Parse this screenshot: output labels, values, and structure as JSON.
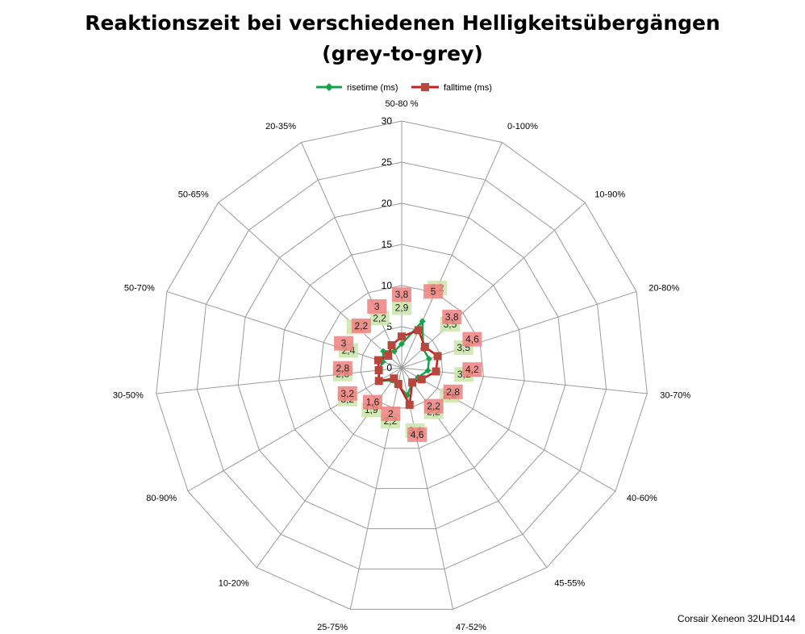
{
  "title": {
    "line1": "Reaktionszeit bei verschiedenen Helligkeitsübergängen",
    "line2": "(grey-to-grey)"
  },
  "footer": "Corsair Xeneon 32UHD144",
  "colors": {
    "rise": "#16a34a",
    "rise_label_bg": "#c9e6a8",
    "fall": "#c81e1e",
    "fall_marker": "#b5473f",
    "fall_label_bg": "#f08080",
    "grid": "#9a9a9a"
  },
  "chart_data": {
    "type": "radar",
    "categories": [
      "50-80 %",
      "0-100%",
      "10-90%",
      "20-80%",
      "30-70%",
      "40-60%",
      "45-55%",
      "47-52%",
      "25-75%",
      "10-20%",
      "80-90%",
      "30-50%",
      "50-70%",
      "50-65%",
      "20-35%"
    ],
    "tick_labels": [
      "0",
      "5",
      "10",
      "15",
      "20",
      "25",
      "30"
    ],
    "rlim": [
      0,
      30
    ],
    "grid": true,
    "legend": "top-center",
    "series": [
      {
        "name": "risetime (ms)",
        "values": [
          2.9,
          6.2,
          3.5,
          3.5,
          3.2,
          2.3,
          2.2,
          3.4,
          2.2,
          1.9,
          3.2,
          2.8,
          2.4,
          3.0,
          2.2
        ]
      },
      {
        "name": "falltime (ms)",
        "values": [
          3.8,
          5.0,
          3.8,
          4.6,
          4.2,
          2.8,
          2.2,
          4.6,
          2.0,
          1.6,
          3.2,
          2.8,
          3.0,
          2.2,
          3.0
        ]
      }
    ],
    "data_labels": {
      "risetime (ms)": [
        "2,9",
        "6,2",
        "3,5",
        "3,5",
        "3,2",
        "2,3",
        "2,2",
        "3,4",
        "2,2",
        "1,9",
        "3,2",
        "2,8",
        "2,4",
        "3",
        "2,2"
      ],
      "falltime (ms)": [
        "3,8",
        "5",
        "3,8",
        "4,6",
        "4,2",
        "2,8",
        "2,2",
        "4,6",
        "2",
        "1,6",
        "3,2",
        "2,8",
        "3",
        "2,2",
        "3"
      ]
    }
  }
}
